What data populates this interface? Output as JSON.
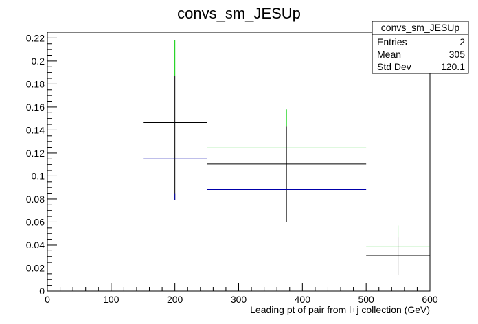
{
  "chart_data": {
    "type": "scatter",
    "title": "convs_sm_JESUp",
    "xlabel": "Leading pt of pair from l+j collection (GeV)",
    "ylabel": "",
    "xlim": [
      0,
      600
    ],
    "ylim": [
      0,
      0.225
    ],
    "x_ticks": [
      0,
      100,
      200,
      300,
      400,
      500,
      600
    ],
    "x_tick_labels": [
      "0",
      "100",
      "200",
      "300",
      "400",
      "500",
      "600"
    ],
    "y_ticks": [
      0,
      0.02,
      0.04,
      0.06,
      0.08,
      0.1,
      0.12,
      0.14,
      0.16,
      0.18,
      0.2,
      0.22
    ],
    "y_tick_labels": [
      "0",
      "0.02",
      "0.04",
      "0.06",
      "0.08",
      "0.1",
      "0.12",
      "0.14",
      "0.16",
      "0.18",
      "0.2",
      "0.22"
    ],
    "grid": false,
    "series": [
      {
        "color": "#00cc00",
        "points": [
          {
            "x": 200,
            "xlo": 150,
            "xhi": 250,
            "y": 0.174
          },
          {
            "x": 375,
            "xlo": 250,
            "xhi": 500,
            "y": 0.1245
          },
          {
            "x": 550,
            "xlo": 500,
            "xhi": 600,
            "y": 0.039
          }
        ]
      },
      {
        "color": "#000000",
        "points": [
          {
            "x": 200,
            "xlo": 150,
            "xhi": 250,
            "y": 0.1465,
            "ylo": 0.079,
            "yhi": 0.187
          },
          {
            "x": 375,
            "xlo": 250,
            "xhi": 500,
            "y": 0.1105,
            "ylo": 0.06,
            "yhi": 0.143
          },
          {
            "x": 550,
            "xlo": 500,
            "xhi": 600,
            "y": 0.031,
            "ylo": 0.014,
            "yhi": 0.047
          }
        ]
      },
      {
        "color": "#0000aa",
        "points": [
          {
            "x": 200,
            "xlo": 150,
            "xhi": 250,
            "y": 0.115
          },
          {
            "x": 375,
            "xlo": 250,
            "xhi": 500,
            "y": 0.088
          },
          {
            "x": 550,
            "xlo": 500,
            "xhi": 600,
            "y": 0.0
          }
        ]
      }
    ],
    "green_error_tops": [
      0.218,
      0.158,
      0.057
    ]
  },
  "stats_box": {
    "name": "convs_sm_JESUp",
    "rows": [
      {
        "label": "Entries",
        "value": "2"
      },
      {
        "label": "Mean",
        "value": "305"
      },
      {
        "label": "Std Dev",
        "value": "120.1"
      }
    ]
  }
}
